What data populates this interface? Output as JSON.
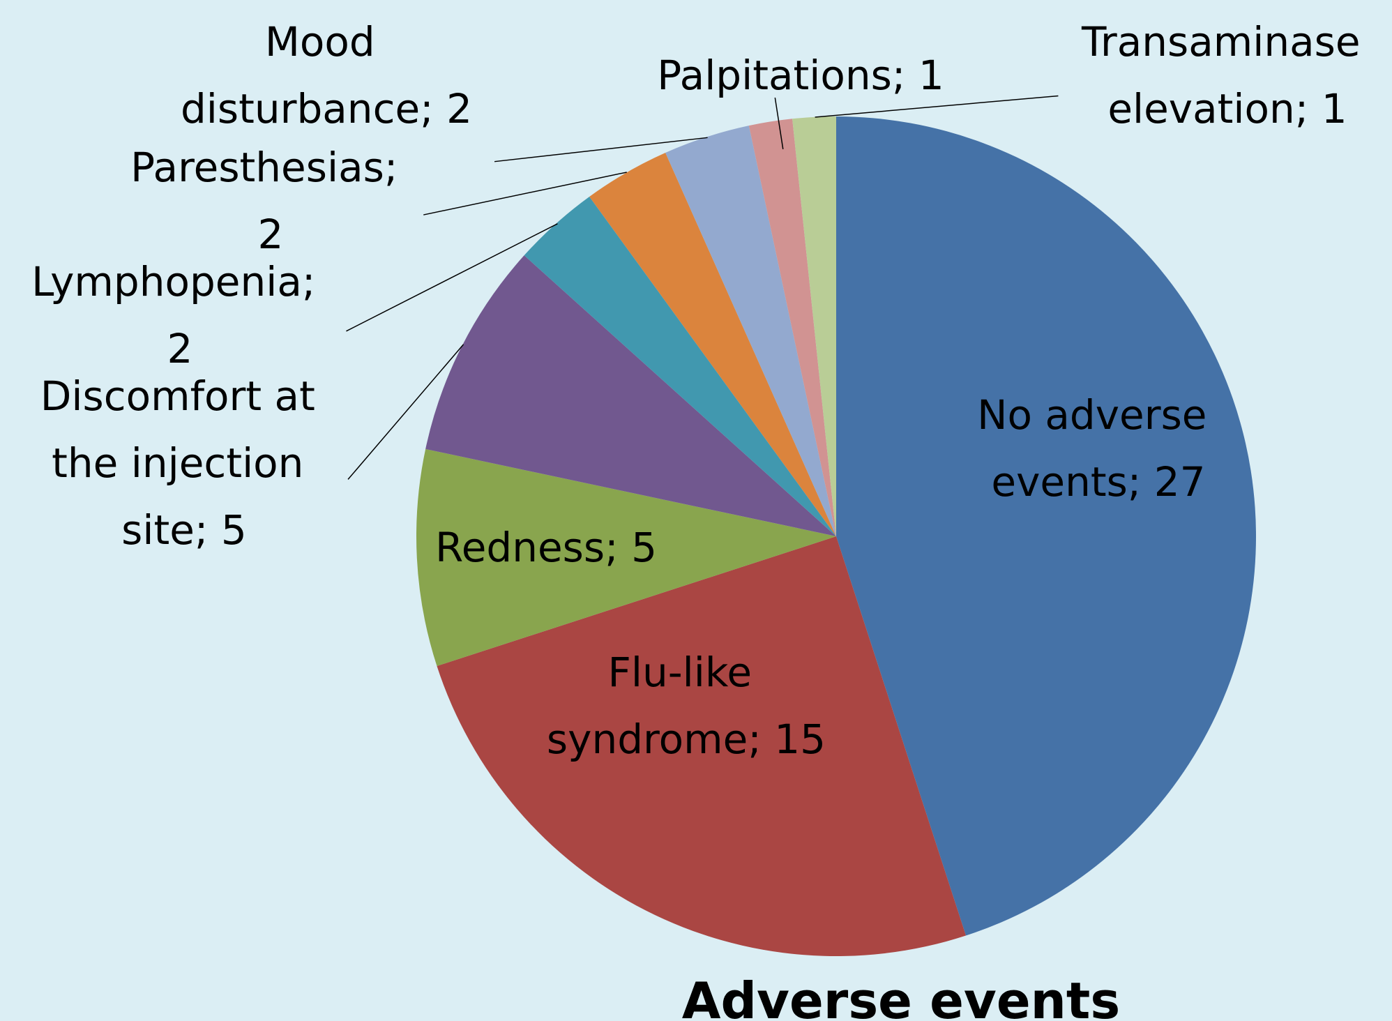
{
  "chart_data": {
    "type": "pie",
    "title": "Adverse events",
    "labels": [
      "No adverse events; 27",
      "Flu-like syndrome; 15",
      "Redness; 5",
      "Discomfort at the injection site; 5",
      "Lymphopenia; 2",
      "Paresthesias; 2",
      "Mood disturbance; 2",
      "Palpitations; 1",
      "Transaminase elevation; 1"
    ],
    "values": [
      27,
      15,
      5,
      5,
      2,
      2,
      2,
      1,
      1
    ],
    "colors": [
      "#4572a7",
      "#aa4643",
      "#89a54e",
      "#71588f",
      "#4198af",
      "#db843d",
      "#93a9cf",
      "#d19392",
      "#b9cd96"
    ]
  }
}
